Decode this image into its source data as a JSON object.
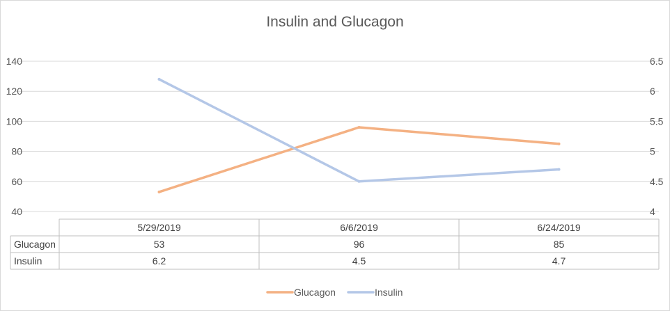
{
  "chart_data": {
    "type": "line",
    "title": "Insulin and Glucagon",
    "categories": [
      "5/29/2019",
      "6/6/2019",
      "6/24/2019"
    ],
    "series": [
      {
        "name": "Glucagon",
        "axis": "left",
        "color": "#f4b183",
        "values": [
          53,
          96,
          85
        ]
      },
      {
        "name": "Insulin",
        "axis": "right",
        "color": "#b4c7e7",
        "values": [
          6.2,
          4.5,
          4.7
        ]
      }
    ],
    "y_left": {
      "min": 40,
      "max": 140,
      "step": 20,
      "ticks": [
        "40",
        "60",
        "80",
        "100",
        "120",
        "140"
      ]
    },
    "y_right": {
      "min": 4,
      "max": 6.5,
      "step": 0.5,
      "ticks": [
        "4",
        "4.5",
        "5",
        "5.5",
        "6",
        "6.5"
      ]
    },
    "grid": true,
    "legend_position": "bottom",
    "data_table": {
      "rows": [
        {
          "label": "Glucagon",
          "cells": [
            "53",
            "96",
            "85"
          ]
        },
        {
          "label": "Insulin",
          "cells": [
            "6.2",
            "4.5",
            "4.7"
          ]
        }
      ]
    },
    "legend": [
      {
        "name": "Glucagon",
        "color": "#f4b183"
      },
      {
        "name": "Insulin",
        "color": "#b4c7e7"
      }
    ]
  }
}
